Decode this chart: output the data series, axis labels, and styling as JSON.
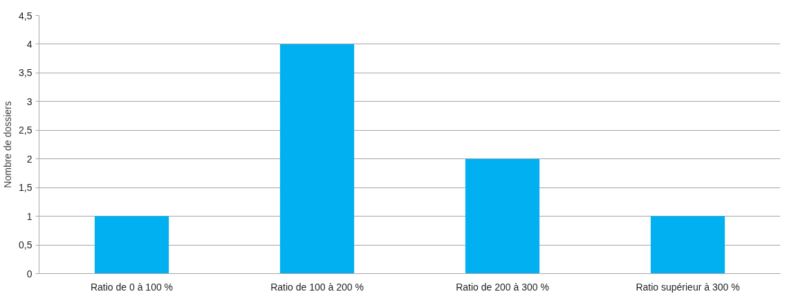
{
  "chart_data": {
    "type": "bar",
    "ylabel": "Nombre de dossiers",
    "categories": [
      "Ratio de 0 à 100 %",
      "Ratio de 100 à 200 %",
      "Ratio de 200 à 300 %",
      "Ratio supérieur à 300 %"
    ],
    "values": [
      1,
      4,
      2,
      1
    ],
    "color": "#00b0f0",
    "ylim": [
      0,
      4.5
    ],
    "yticks": [
      0,
      {
        "value": 0.5,
        "label": "0,5"
      },
      1,
      {
        "value": 1.5,
        "label": "1,5"
      },
      2,
      {
        "value": 2.5,
        "label": "2,5"
      },
      3,
      {
        "value": 3.5,
        "label": "3,5"
      },
      4,
      {
        "value": 4.5,
        "label": "4,5"
      }
    ],
    "grid": "y"
  }
}
